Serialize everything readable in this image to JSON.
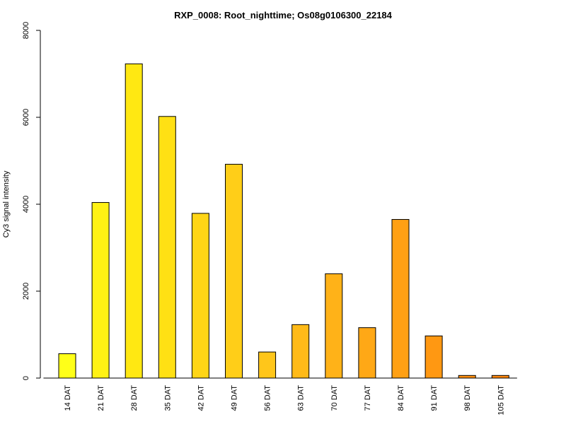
{
  "chart_data": {
    "type": "bar",
    "title": "RXP_0008: Root_nighttime; Os08g0106300_22184",
    "xlabel": "",
    "ylabel": "Cy3 signal intensity",
    "ylim": [
      0,
      8000
    ],
    "yticks": [
      0,
      2000,
      4000,
      6000,
      8000
    ],
    "grid": false,
    "legend": "none",
    "categories": [
      "14 DAT",
      "21 DAT",
      "28 DAT",
      "35 DAT",
      "42 DAT",
      "49 DAT",
      "56 DAT",
      "63 DAT",
      "70 DAT",
      "77 DAT",
      "84 DAT",
      "91 DAT",
      "98 DAT",
      "105 DAT"
    ],
    "values": [
      560,
      4040,
      7230,
      6020,
      3790,
      4920,
      600,
      1230,
      2400,
      1160,
      3650,
      970,
      60,
      60
    ],
    "colors": [
      "#FFFF18",
      "#FFF214",
      "#FFE812",
      "#FFE014",
      "#FFD516",
      "#FFCE18",
      "#FFC61A",
      "#FFBA18",
      "#FFB218",
      "#FFA816",
      "#FFA014",
      "#FF9812",
      "#FF9010",
      "#FF880E"
    ]
  }
}
